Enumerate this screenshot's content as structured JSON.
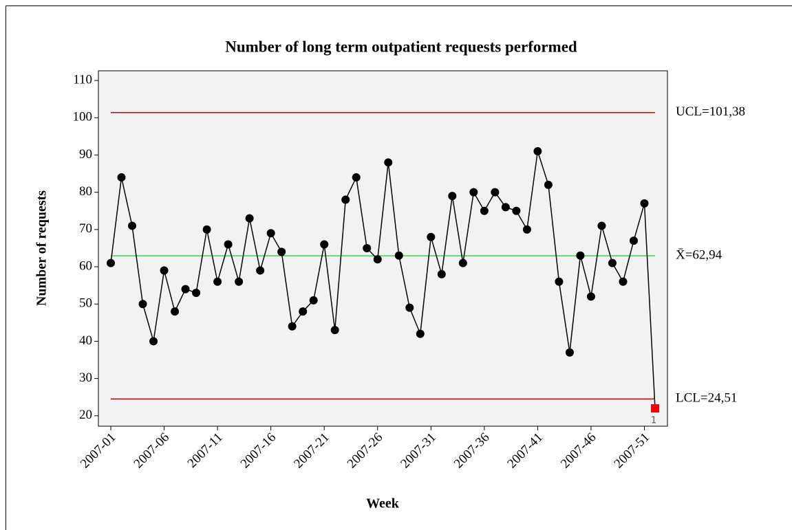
{
  "chart_data": {
    "type": "line",
    "title": "Number of long term outpatient requests performed",
    "x_label": "Week",
    "y_label": "Number of requests",
    "categories": [
      "2007-01",
      null,
      null,
      null,
      null,
      "2007-06",
      null,
      null,
      null,
      null,
      "2007-11",
      null,
      null,
      null,
      null,
      "2007-16",
      null,
      null,
      null,
      null,
      "2007-21",
      null,
      null,
      null,
      null,
      "2007-26",
      null,
      null,
      null,
      null,
      "2007-31",
      null,
      null,
      null,
      null,
      "2007-36",
      null,
      null,
      null,
      null,
      "2007-41",
      null,
      null,
      null,
      null,
      "2007-46",
      null,
      null,
      null,
      null,
      "2007-51",
      null
    ],
    "series": [
      {
        "color": "#000000",
        "values": [
          61,
          84,
          71,
          50,
          40,
          59,
          48,
          54,
          53,
          70,
          56,
          66,
          56,
          73,
          59,
          69,
          64,
          44,
          48,
          51,
          66,
          43,
          78,
          84,
          65,
          62,
          88,
          63,
          49,
          42,
          68,
          58,
          79,
          61,
          80,
          75,
          80,
          76,
          75,
          70,
          91,
          82,
          56,
          37,
          63,
          52,
          71,
          61,
          56,
          67,
          77,
          22
        ],
        "point_flags": [
          null,
          null,
          null,
          null,
          null,
          null,
          null,
          null,
          null,
          null,
          null,
          null,
          null,
          null,
          null,
          null,
          null,
          null,
          null,
          null,
          null,
          null,
          null,
          null,
          null,
          null,
          null,
          null,
          null,
          null,
          null,
          null,
          null,
          null,
          null,
          null,
          null,
          null,
          null,
          null,
          null,
          null,
          null,
          null,
          null,
          null,
          null,
          null,
          null,
          null,
          null,
          "1"
        ],
        "flag_color": "#ff0000"
      }
    ],
    "control_lines": [
      {
        "value": 101.38,
        "label": "UCL=101,38",
        "color": "#cc0000"
      },
      {
        "value": 62.94,
        "label": "X̄=62,94",
        "color": "#33dd33"
      },
      {
        "value": 24.51,
        "label": "LCL=24,51",
        "color": "#cc0000"
      }
    ],
    "ylim": [
      17.2,
      112.6
    ],
    "yticks": [
      20,
      30,
      40,
      50,
      60,
      70,
      80,
      90,
      100,
      110
    ],
    "plot_background": "#f2f2f2"
  }
}
